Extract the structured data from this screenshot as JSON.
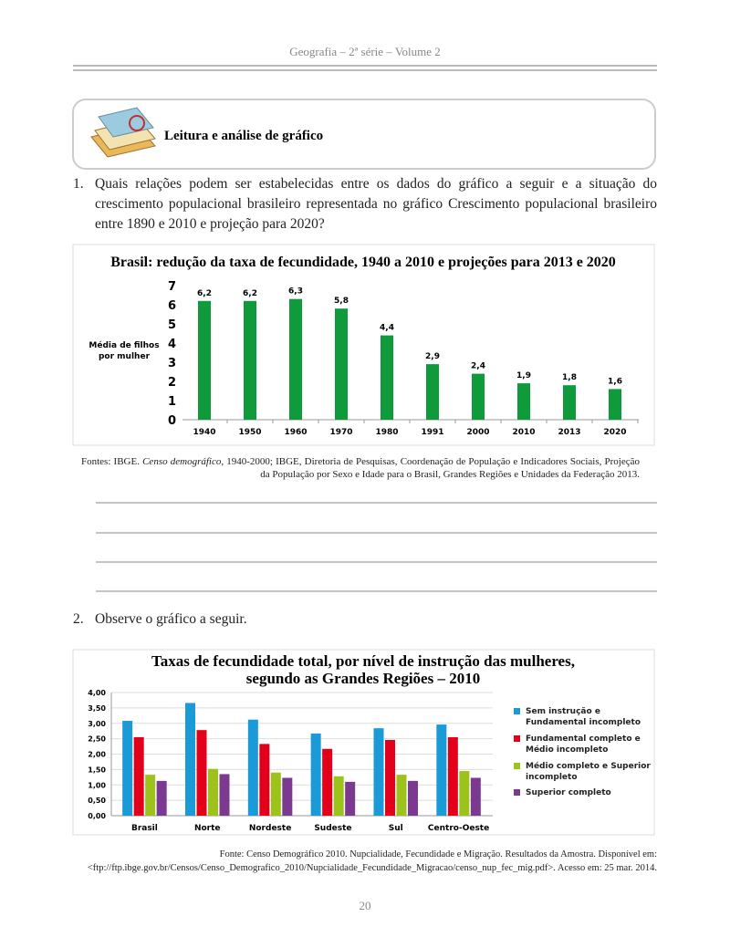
{
  "header": {
    "text": "Geografia – 2ª série – Volume 2"
  },
  "activity_box": {
    "title": "Leitura e análise de gráfico"
  },
  "question_1": {
    "number": "1.",
    "text": "Quais relações podem ser estabelecidas entre os dados do gráfico a seguir e a situação do crescimento populacional brasileiro representada no gráfico Crescimento populacional brasileiro entre 1890 e 2010 e projeção para 2020?"
  },
  "chart_data": [
    {
      "type": "bar",
      "title": "Brasil: redução da taxa de fecundidade, 1940 a 2010 e projeções para 2013 e 2020",
      "y_label": [
        "Média de filhos",
        "por mulher"
      ],
      "categories": [
        "1940",
        "1950",
        "1960",
        "1970",
        "1980",
        "1991",
        "2000",
        "2010",
        "2013",
        "2020"
      ],
      "values": [
        6.2,
        6.2,
        6.3,
        5.8,
        4.4,
        2.9,
        2.4,
        1.9,
        1.8,
        1.6
      ],
      "value_labels": [
        "6,2",
        "6,2",
        "6,3",
        "5,8",
        "4,4",
        "2,9",
        "2,4",
        "1,9",
        "1,8",
        "1,6"
      ],
      "color": "#0f9a3c",
      "ylim": [
        0,
        7
      ],
      "yticks": [
        0,
        1,
        2,
        3,
        4,
        5,
        6,
        7
      ],
      "grid": false
    },
    {
      "type": "grouped_bar",
      "title": [
        "Taxas de fecundidade total, por nível de instrução das mulheres,",
        "segundo as Grandes Regiões – 2010"
      ],
      "categories": [
        "Brasil",
        "Norte",
        "Nordeste",
        "Sudeste",
        "Sul",
        "Centro-Oeste"
      ],
      "series": [
        {
          "name": "Sem instrução e Fundamental incompleto",
          "color": "#1a9ad6",
          "values": [
            3.08,
            3.66,
            3.12,
            2.67,
            2.84,
            2.96
          ]
        },
        {
          "name": "Fundamental completo e Médio incompleto",
          "color": "#e3001b",
          "values": [
            2.55,
            2.78,
            2.33,
            2.17,
            2.46,
            2.55
          ]
        },
        {
          "name": "Médio completo e Superior incompleto",
          "color": "#9dc21b",
          "values": [
            1.33,
            1.52,
            1.4,
            1.28,
            1.33,
            1.45
          ]
        },
        {
          "name": "Superior completo",
          "color": "#7b3a8f",
          "values": [
            1.13,
            1.35,
            1.23,
            1.1,
            1.13,
            1.23
          ]
        }
      ],
      "ylim": [
        0,
        4
      ],
      "yticks": [
        {
          "value": 0,
          "label": "0,00"
        },
        {
          "value": 0.5,
          "label": "0,50"
        },
        {
          "value": 1,
          "label": "1,00"
        },
        {
          "value": 1.5,
          "label": "1,50"
        },
        {
          "value": 2,
          "label": "2,00"
        },
        {
          "value": 2.5,
          "label": "2,50"
        },
        {
          "value": 3,
          "label": "3,00"
        },
        {
          "value": 3.5,
          "label": "3,50"
        },
        {
          "value": 4,
          "label": "4,00"
        }
      ],
      "grid": true,
      "legend": "right"
    }
  ],
  "source_1": {
    "parts": [
      "Fontes: IBGE. ",
      "Censo demográfico",
      ", 1940-2000; IBGE, Diretoria de Pesquisas, Coordenação de População e Indicadores Sociais, Projeção da População por Sexo e Idade para o Brasil, Grandes Regiões e Unidades da Federação 2013."
    ]
  },
  "question_2": {
    "number": "2.",
    "text": "Observe o gráfico a seguir."
  },
  "source_2": {
    "text": "Fonte: Censo Demográfico 2010. Nupcialidade, Fecundidade e Migração. Resultados da Amostra. Disponível em: <ftp://ftp.ibge.gov.br/Censos/Censo_Demografico_2010/Nupcialidade_Fecundidade_Migracao/censo_nup_fec_mig.pdf>. Acesso em: 25 mar. 2014."
  },
  "page_number": "20"
}
